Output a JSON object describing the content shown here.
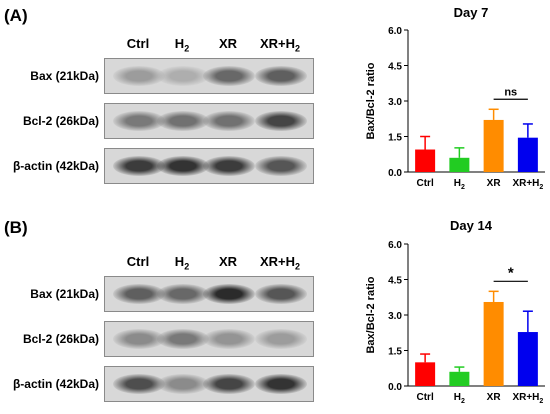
{
  "panels": [
    {
      "label": "(A)",
      "lanes": [
        "Ctrl",
        "H",
        "XR",
        "XR+H"
      ],
      "rows": [
        {
          "label": "Bax (21kDa)",
          "intensity": [
            0.25,
            0.15,
            0.55,
            0.6
          ]
        },
        {
          "label": "Bcl-2 (26kDa)",
          "intensity": [
            0.45,
            0.5,
            0.5,
            0.75
          ]
        },
        {
          "label": "β-actin (42kDa)",
          "intensity": [
            0.8,
            0.85,
            0.8,
            0.65
          ]
        }
      ]
    },
    {
      "label": "(B)",
      "lanes": [
        "Ctrl",
        "H",
        "XR",
        "XR+H"
      ],
      "rows": [
        {
          "label": "Bax (21kDa)",
          "intensity": [
            0.6,
            0.55,
            0.9,
            0.65
          ]
        },
        {
          "label": "Bcl-2 (26kDa)",
          "intensity": [
            0.35,
            0.45,
            0.3,
            0.25
          ]
        },
        {
          "label": "β-actin (42kDa)",
          "intensity": [
            0.7,
            0.35,
            0.75,
            0.85
          ]
        }
      ]
    }
  ],
  "subscript": "2",
  "colors": {
    "Ctrl": "#ff0000",
    "H2": "#22cc22",
    "XR": "#ff8c00",
    "XR+H2": "#0000ee"
  },
  "chart_data": [
    {
      "type": "bar",
      "title": "Day 7",
      "ylabel": "Bax/Bcl-2 ratio",
      "categories": [
        "Ctrl",
        "H2",
        "XR",
        "XR+H2"
      ],
      "values": [
        0.95,
        0.6,
        2.2,
        1.45
      ],
      "errors": [
        0.55,
        0.42,
        0.45,
        0.58
      ],
      "ylim": [
        0,
        6
      ],
      "yticks": [
        "0.0",
        "1.5",
        "3.0",
        "4.5",
        "6.0"
      ],
      "annotation": {
        "text": "ns",
        "between": [
          2,
          3
        ]
      }
    },
    {
      "type": "bar",
      "title": "Day 14",
      "ylabel": "Bax/Bcl-2 ratio",
      "categories": [
        "Ctrl",
        "H2",
        "XR",
        "XR+H2"
      ],
      "values": [
        1.0,
        0.6,
        3.55,
        2.28
      ],
      "errors": [
        0.35,
        0.2,
        0.45,
        0.88
      ],
      "ylim": [
        0,
        6
      ],
      "yticks": [
        "0.0",
        "1.5",
        "3.0",
        "4.5",
        "6.0"
      ],
      "annotation": {
        "text": "*",
        "between": [
          2,
          3
        ]
      }
    }
  ]
}
